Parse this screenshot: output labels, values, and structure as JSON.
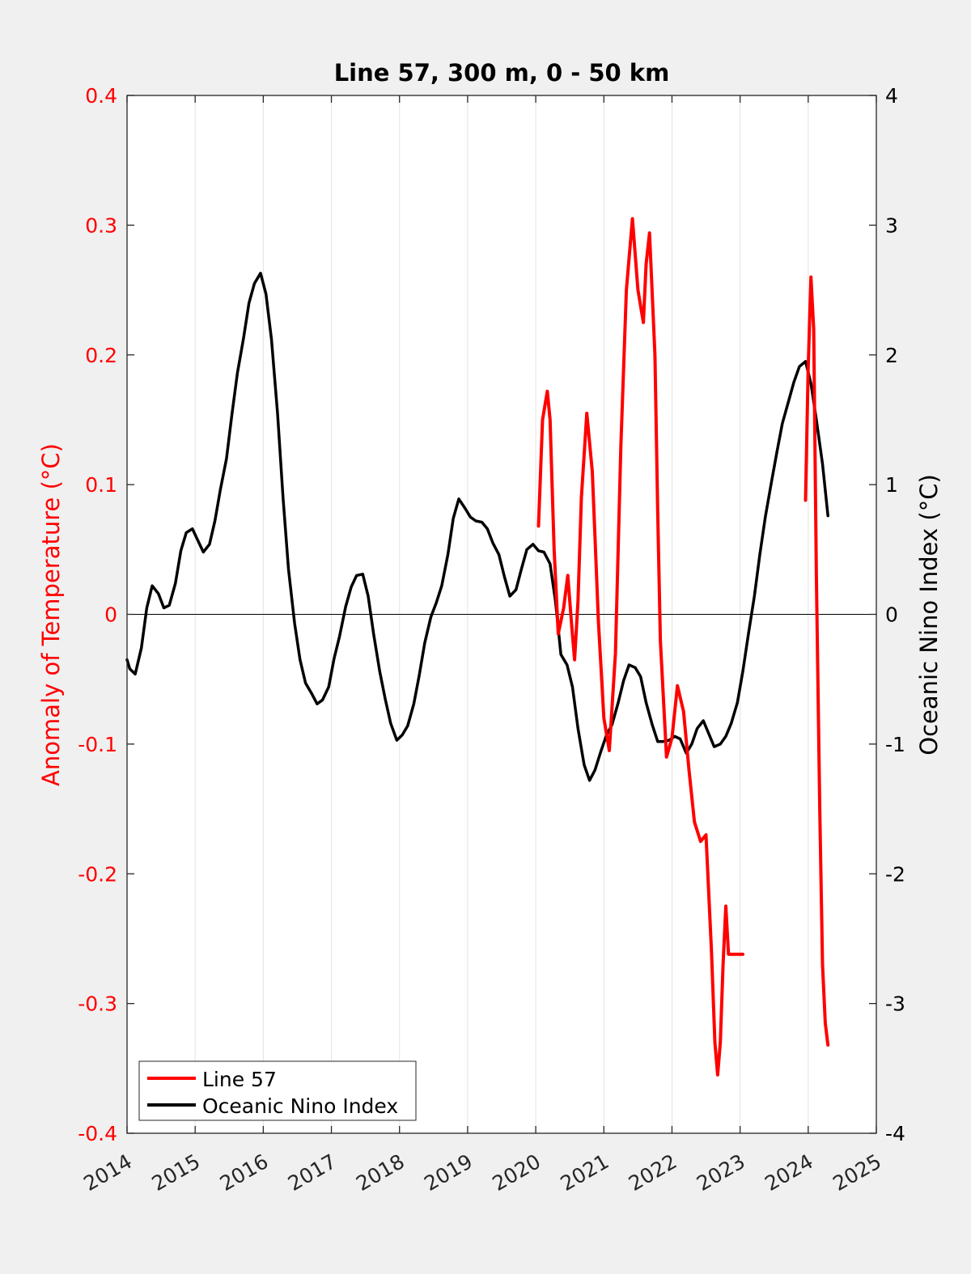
{
  "chart_data": {
    "type": "line",
    "title": "Line 57, 300 m, 0 - 50 km",
    "xlim": [
      2014,
      2025
    ],
    "x_ticks": [
      "2014",
      "2015",
      "2016",
      "2017",
      "2018",
      "2019",
      "2020",
      "2021",
      "2022",
      "2023",
      "2024",
      "2025"
    ],
    "y_left": {
      "label": "Anomaly of Temperature (°C)",
      "lim": [
        -0.4,
        0.4
      ],
      "ticks": [
        "0.4",
        "0.3",
        "0.2",
        "0.1",
        "0",
        "-0.1",
        "-0.2",
        "-0.3",
        "-0.4"
      ],
      "tick_values": [
        0.4,
        0.3,
        0.2,
        0.1,
        0,
        -0.1,
        -0.2,
        -0.3,
        -0.4
      ],
      "color": "#ff0000"
    },
    "y_right": {
      "label": "Oceanic Nino Index (°C)",
      "lim": [
        -4,
        4
      ],
      "ticks": [
        "4",
        "3",
        "2",
        "1",
        "0",
        "-1",
        "-2",
        "-3",
        "-4"
      ],
      "tick_values": [
        4,
        3,
        2,
        1,
        0,
        -1,
        -2,
        -3,
        -4
      ],
      "color": "#000000"
    },
    "grid": "vertical",
    "zero_line": true,
    "legend": {
      "position": "bottom-left",
      "entries": [
        "Line 57",
        "Oceanic Nino Index"
      ]
    },
    "series": [
      {
        "name": "Line 57",
        "axis": "left",
        "color": "#ff0000",
        "segments": [
          {
            "x": [
              2020.04,
              2020.1,
              2020.17,
              2020.21,
              2020.27,
              2020.33,
              2020.41,
              2020.47,
              2020.53,
              2020.57,
              2020.62,
              2020.67,
              2020.75,
              2020.83,
              2020.87,
              2020.92,
              2021.0,
              2021.08,
              2021.17,
              2021.25,
              2021.33,
              2021.42,
              2021.5,
              2021.58,
              2021.62,
              2021.67,
              2021.75,
              2021.79,
              2021.83,
              2021.92,
              2022.0,
              2022.08,
              2022.17,
              2022.25,
              2022.33,
              2022.42,
              2022.5,
              2022.58,
              2022.63,
              2022.67,
              2022.71,
              2022.75,
              2022.79,
              2022.83,
              2022.87,
              2022.92,
              2022.96,
              2023.0,
              2023.04
            ],
            "y": [
              0.068,
              0.15,
              0.172,
              0.15,
              0.05,
              -0.015,
              0.005,
              0.03,
              -0.01,
              -0.035,
              0.01,
              0.09,
              0.155,
              0.11,
              0.06,
              -0.005,
              -0.08,
              -0.105,
              -0.03,
              0.13,
              0.25,
              0.305,
              0.25,
              0.225,
              0.27,
              0.294,
              0.2,
              0.08,
              -0.02,
              -0.11,
              -0.095,
              -0.055,
              -0.075,
              -0.12,
              -0.16,
              -0.175,
              -0.17,
              -0.26,
              -0.33,
              -0.355,
              -0.33,
              -0.27,
              -0.225,
              -0.262,
              -0.262,
              -0.262,
              -0.262,
              -0.262,
              -0.262
            ]
          },
          {
            "x": [
              2023.96,
              2024.0,
              2024.04,
              2024.08,
              2024.12,
              2024.17,
              2024.21,
              2024.25,
              2024.29
            ],
            "y": [
              0.088,
              0.19,
              0.26,
              0.22,
              0.03,
              -0.15,
              -0.27,
              -0.315,
              -0.332
            ]
          }
        ]
      },
      {
        "name": "Oceanic Nino Index",
        "axis": "right",
        "color": "#000000",
        "x": [
          2014.0,
          2014.04,
          2014.12,
          2014.21,
          2014.29,
          2014.37,
          2014.46,
          2014.54,
          2014.62,
          2014.71,
          2014.79,
          2014.87,
          2014.96,
          2015.04,
          2015.12,
          2015.21,
          2015.29,
          2015.37,
          2015.46,
          2015.54,
          2015.62,
          2015.71,
          2015.79,
          2015.87,
          2015.96,
          2016.04,
          2016.12,
          2016.21,
          2016.29,
          2016.37,
          2016.46,
          2016.54,
          2016.62,
          2016.71,
          2016.79,
          2016.87,
          2016.96,
          2017.04,
          2017.12,
          2017.21,
          2017.29,
          2017.37,
          2017.46,
          2017.54,
          2017.62,
          2017.71,
          2017.79,
          2017.87,
          2017.96,
          2018.04,
          2018.12,
          2018.21,
          2018.29,
          2018.37,
          2018.46,
          2018.54,
          2018.62,
          2018.71,
          2018.79,
          2018.87,
          2018.96,
          2019.04,
          2019.12,
          2019.21,
          2019.29,
          2019.37,
          2019.46,
          2019.54,
          2019.62,
          2019.71,
          2019.79,
          2019.87,
          2019.96,
          2020.04,
          2020.12,
          2020.21,
          2020.29,
          2020.37,
          2020.46,
          2020.54,
          2020.62,
          2020.71,
          2020.79,
          2020.87,
          2020.96,
          2021.04,
          2021.12,
          2021.21,
          2021.29,
          2021.37,
          2021.46,
          2021.54,
          2021.62,
          2021.71,
          2021.79,
          2021.87,
          2021.96,
          2022.04,
          2022.12,
          2022.21,
          2022.29,
          2022.37,
          2022.46,
          2022.54,
          2022.62,
          2022.71,
          2022.79,
          2022.87,
          2022.96,
          2023.04,
          2023.12,
          2023.21,
          2023.29,
          2023.37,
          2023.46,
          2023.54,
          2023.62,
          2023.71,
          2023.79,
          2023.87,
          2023.96,
          2024.04,
          2024.12,
          2024.21,
          2024.29
        ],
        "y": [
          -0.35,
          -0.42,
          -0.46,
          -0.26,
          0.05,
          0.22,
          0.16,
          0.05,
          0.07,
          0.24,
          0.49,
          0.63,
          0.66,
          0.57,
          0.48,
          0.54,
          0.72,
          0.96,
          1.2,
          1.54,
          1.86,
          2.13,
          2.4,
          2.55,
          2.63,
          2.47,
          2.12,
          1.55,
          0.9,
          0.35,
          -0.07,
          -0.35,
          -0.53,
          -0.61,
          -0.69,
          -0.66,
          -0.56,
          -0.34,
          -0.17,
          0.06,
          0.21,
          0.3,
          0.31,
          0.14,
          -0.15,
          -0.44,
          -0.65,
          -0.84,
          -0.97,
          -0.93,
          -0.86,
          -0.69,
          -0.47,
          -0.22,
          -0.02,
          0.09,
          0.22,
          0.46,
          0.74,
          0.89,
          0.82,
          0.75,
          0.72,
          0.71,
          0.66,
          0.55,
          0.46,
          0.29,
          0.14,
          0.19,
          0.35,
          0.5,
          0.54,
          0.49,
          0.48,
          0.39,
          0.1,
          -0.31,
          -0.39,
          -0.56,
          -0.88,
          -1.16,
          -1.28,
          -1.2,
          -1.05,
          -0.93,
          -0.85,
          -0.68,
          -0.51,
          -0.39,
          -0.41,
          -0.48,
          -0.68,
          -0.85,
          -0.98,
          -0.98,
          -0.97,
          -0.94,
          -0.96,
          -1.07,
          -1.0,
          -0.88,
          -0.82,
          -0.92,
          -1.02,
          -1.0,
          -0.94,
          -0.84,
          -0.68,
          -0.44,
          -0.16,
          0.14,
          0.46,
          0.75,
          1.02,
          1.25,
          1.47,
          1.64,
          1.79,
          1.91,
          1.95,
          1.78,
          1.5,
          1.16,
          0.76
        ]
      }
    ]
  }
}
